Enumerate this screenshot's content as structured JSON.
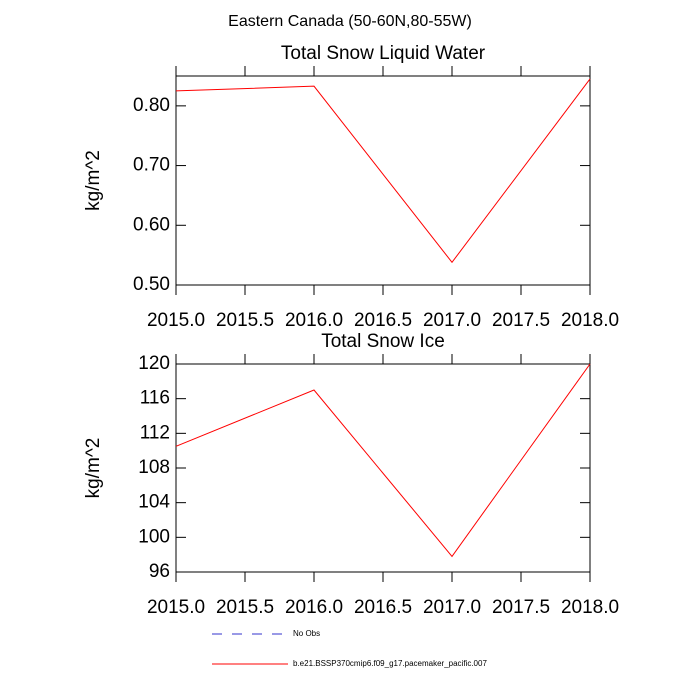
{
  "title": "Eastern Canada (50-60N,80-55W)",
  "chart_data": [
    {
      "type": "line",
      "title": "Total Snow Liquid Water",
      "y_label": "kg/m^2",
      "x": [
        2015,
        2016,
        2017,
        2018
      ],
      "series": [
        {
          "color": "#ff0000",
          "values": [
            0.825,
            0.833,
            0.538,
            0.845
          ]
        }
      ],
      "xlim": [
        2015,
        2018
      ],
      "xticks": [
        {
          "value": 2015,
          "label": "2015.0"
        },
        {
          "value": 2015.5,
          "label": "2015.5"
        },
        {
          "value": 2016,
          "label": "2016.0"
        },
        {
          "value": 2016.5,
          "label": "2016.5"
        },
        {
          "value": 2017,
          "label": "2017.0"
        },
        {
          "value": 2017.5,
          "label": "2017.5"
        },
        {
          "value": 2018,
          "label": "2018.0"
        }
      ],
      "ylim": [
        0.5,
        0.85
      ],
      "yticks": [
        {
          "value": 0.5,
          "label": "0.50"
        },
        {
          "value": 0.6,
          "label": "0.60"
        },
        {
          "value": 0.7,
          "label": "0.70"
        },
        {
          "value": 0.8,
          "label": "0.80"
        }
      ]
    },
    {
      "type": "line",
      "title": "Total Snow Ice",
      "y_label": "kg/m^2",
      "x": [
        2015,
        2016,
        2017,
        2018
      ],
      "series": [
        {
          "color": "#ff0000",
          "values": [
            110.5,
            117.0,
            97.8,
            120
          ]
        }
      ],
      "xlim": [
        2015,
        2018
      ],
      "xticks": [
        {
          "value": 2015,
          "label": "2015.0"
        },
        {
          "value": 2015.5,
          "label": "2015.5"
        },
        {
          "value": 2016,
          "label": "2016.0"
        },
        {
          "value": 2016.5,
          "label": "2016.5"
        },
        {
          "value": 2017,
          "label": "2017.0"
        },
        {
          "value": 2017.5,
          "label": "2017.5"
        },
        {
          "value": 2018,
          "label": "2018.0"
        }
      ],
      "ylim": [
        96,
        120
      ],
      "yticks": [
        96,
        100,
        104,
        108,
        112,
        116,
        120
      ]
    }
  ],
  "legend": [
    {
      "name": "No Obs",
      "color": "#3333cc",
      "dashed": true
    },
    {
      "name": "b.e21.BSSP370cmip6.f09_g17.pacemaker_pacific.007",
      "color": "#ff0000",
      "dashed": false
    }
  ]
}
